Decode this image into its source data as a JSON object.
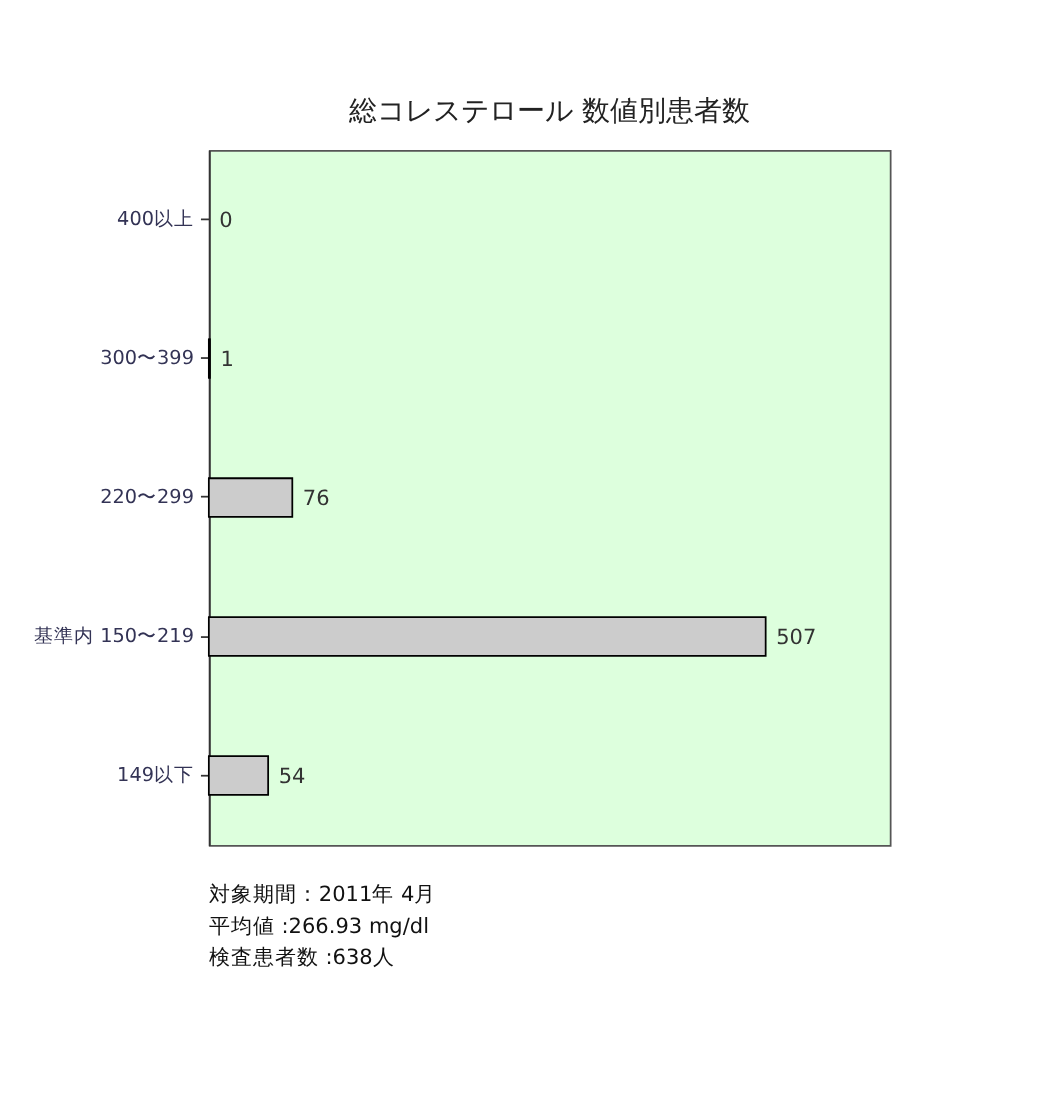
{
  "chart_data": {
    "type": "bar",
    "orientation": "horizontal",
    "title": "総コレステロール 数値別患者数",
    "categories": [
      "400以上",
      "300〜399",
      "220〜299",
      "基準内 150〜219",
      "149以下"
    ],
    "values": [
      0,
      1,
      76,
      507,
      54
    ],
    "color": "#cccccc",
    "xlim": [
      0,
      620
    ],
    "data_labels": true,
    "tick_labels": "y",
    "annotations": [
      "対象期間：2011年 4月",
      "平均値 :266.93 mg/dl",
      "検査患者数 :638人"
    ]
  }
}
